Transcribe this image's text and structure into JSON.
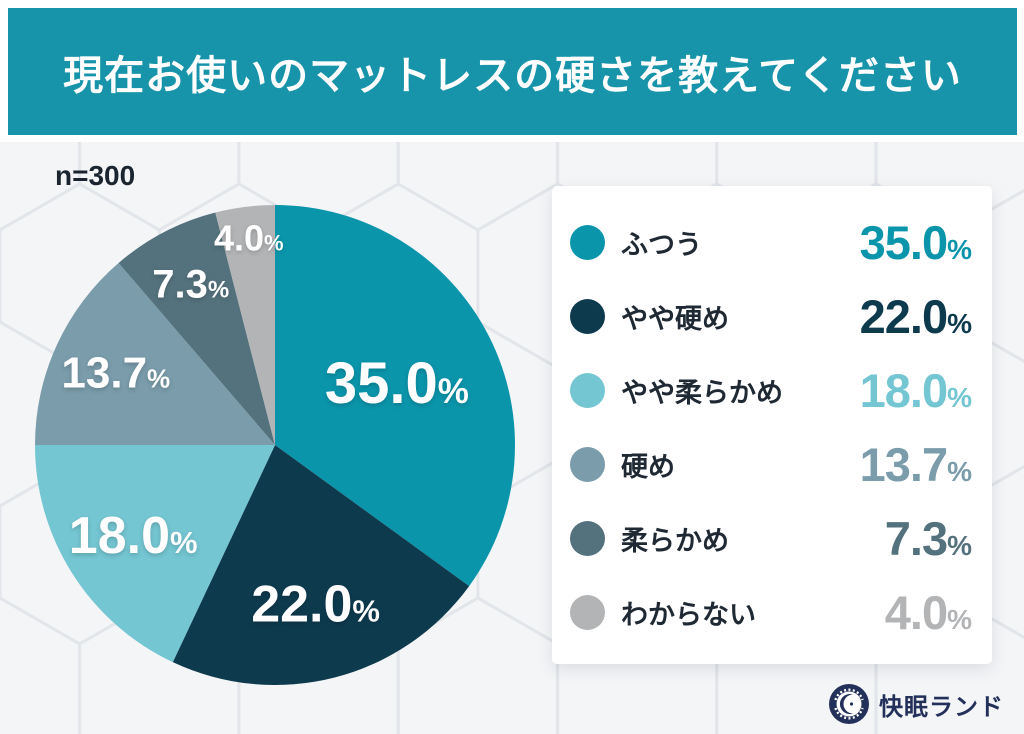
{
  "header": {
    "title": "現在お使いのマットレスの硬さを教えてください"
  },
  "colors": {
    "banner_bg": "#1794a9",
    "legend_card_bg": "#ffffff",
    "legend_label_text": "#1f2933",
    "sample_text": "#1b2530",
    "brand_navy": "#233059",
    "background": "#eef0f2"
  },
  "chart_data": {
    "type": "pie",
    "title": "現在お使いのマットレスの硬さを教えてください",
    "sample_label": "n=300",
    "sample_size": 300,
    "unit": "%",
    "categories": [
      "ふつう",
      "やや硬め",
      "やや柔らかめ",
      "硬め",
      "柔らかめ",
      "わからない"
    ],
    "values": [
      35.0,
      22.0,
      18.0,
      13.7,
      7.3,
      4.0
    ],
    "value_labels": [
      "35.0",
      "22.0",
      "18.0",
      "13.7",
      "7.3",
      "4.0"
    ],
    "colors": [
      "#0b95ab",
      "#0e3a4e",
      "#74c6d2",
      "#7a9cab",
      "#54727d",
      "#b3b4b6"
    ],
    "start_angle": "top",
    "direction": "clockwise",
    "legend_position": "right",
    "label_radius": [
      0.57,
      0.68,
      0.7,
      0.73,
      0.76,
      0.87
    ],
    "label_font": [
      58,
      52,
      52,
      44,
      40,
      36
    ]
  },
  "footer": {
    "brand": "快眠ランド"
  }
}
